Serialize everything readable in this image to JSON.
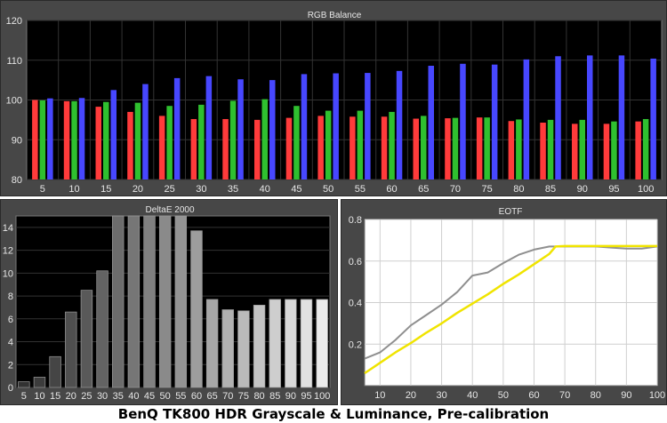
{
  "caption": "BenQ TK800 HDR Grayscale & Luminance, Pre-calibration",
  "chart_data": [
    {
      "type": "bar",
      "title": "RGB Balance",
      "xlabel": "",
      "ylabel": "",
      "ylim": [
        80,
        120
      ],
      "yticks": [
        80,
        90,
        100,
        110,
        120
      ],
      "grid": true,
      "categories": [
        "5",
        "10",
        "15",
        "20",
        "25",
        "30",
        "35",
        "40",
        "45",
        "50",
        "55",
        "60",
        "65",
        "70",
        "75",
        "80",
        "85",
        "90",
        "95",
        "100"
      ],
      "series": [
        {
          "color": "#ff3b3b",
          "values": [
            100,
            99.7,
            98.3,
            97,
            96,
            95.2,
            95.2,
            95,
            95.5,
            96,
            95.8,
            95.8,
            95.3,
            95.4,
            95.6,
            94.7,
            94.3,
            94,
            94,
            94.6
          ]
        },
        {
          "color": "#2fc02f",
          "values": [
            99.9,
            99.7,
            99.5,
            99.3,
            98.5,
            98.8,
            99.8,
            100.2,
            98.5,
            97.3,
            97.3,
            97,
            96,
            95.5,
            95.6,
            95.1,
            95,
            95,
            94.6,
            95.2
          ]
        },
        {
          "color": "#4747ff",
          "values": [
            100.4,
            100.5,
            102.5,
            104,
            105.5,
            106,
            105.2,
            105,
            106.5,
            106.7,
            106.8,
            107.3,
            108.6,
            109.1,
            108.9,
            110.2,
            111,
            111.2,
            111.2,
            110.4
          ]
        }
      ]
    },
    {
      "type": "bar",
      "title": "DeltaE 2000",
      "xlabel": "",
      "ylabel": "",
      "ylim": [
        0,
        15
      ],
      "yticks": [
        0,
        2,
        4,
        6,
        8,
        10,
        12,
        14
      ],
      "grid": true,
      "categories": [
        "5",
        "10",
        "15",
        "20",
        "25",
        "30",
        "35",
        "40",
        "45",
        "50",
        "55",
        "60",
        "65",
        "70",
        "75",
        "80",
        "85",
        "90",
        "95",
        "100"
      ],
      "values": [
        0.5,
        0.9,
        2.7,
        6.6,
        8.5,
        10.2,
        15,
        15,
        15,
        15,
        15,
        13.7,
        7.7,
        6.8,
        6.7,
        7.2,
        7.7,
        7.7,
        7.7,
        7.7
      ]
    },
    {
      "type": "line",
      "title": "EOTF",
      "xlabel": "",
      "ylabel": "",
      "xlim": [
        5,
        100
      ],
      "ylim": [
        0,
        0.8
      ],
      "xticks": [
        10,
        20,
        30,
        40,
        50,
        60,
        70,
        80,
        90,
        100
      ],
      "yticks": [
        0.2,
        0.4,
        0.6,
        0.8
      ],
      "grid": true,
      "series": [
        {
          "color": "#8f8f8f",
          "x": [
            5,
            10,
            15,
            20,
            25,
            30,
            35,
            40,
            45,
            50,
            55,
            60,
            65,
            70,
            75,
            80,
            85,
            90,
            95,
            100
          ],
          "y": [
            0.13,
            0.16,
            0.22,
            0.29,
            0.34,
            0.39,
            0.45,
            0.53,
            0.545,
            0.59,
            0.63,
            0.655,
            0.67,
            0.67,
            0.67,
            0.67,
            0.665,
            0.66,
            0.66,
            0.67
          ]
        },
        {
          "color": "#f0e400",
          "x": [
            5,
            10,
            15,
            20,
            25,
            30,
            35,
            40,
            45,
            50,
            55,
            60,
            65,
            67,
            70,
            75,
            80,
            85,
            90,
            95,
            100
          ],
          "y": [
            0.06,
            0.11,
            0.16,
            0.205,
            0.255,
            0.3,
            0.35,
            0.395,
            0.44,
            0.49,
            0.535,
            0.585,
            0.635,
            0.67,
            0.672,
            0.672,
            0.672,
            0.672,
            0.672,
            0.672,
            0.672
          ]
        }
      ]
    }
  ]
}
